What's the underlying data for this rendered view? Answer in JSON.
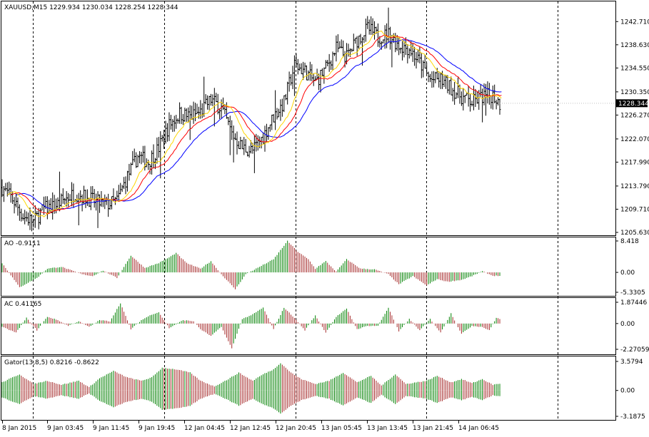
{
  "chart_title": "XAUUSD,M15  1229.934 1230.034 1228.254 1228.344",
  "current_price_label": "1228.344",
  "colors": {
    "candle": "#000000",
    "alligator_jaw": "#0000ff",
    "alligator_teeth": "#ff0000",
    "alligator_lips": "#ffd700",
    "bar_up": "#008000",
    "bar_down": "#a52a2a",
    "separator": "#000000",
    "price_marker_bg": "#000000",
    "price_marker_text": "#ffffff"
  },
  "chart_data": [
    {
      "type": "candlestick",
      "name": "XAUUSD,M15",
      "symbol": "XAUUSD",
      "timeframe": "M15",
      "ohlc_current": {
        "open": 1229.934,
        "high": 1230.034,
        "low": 1228.254,
        "close": 1228.344
      },
      "ylim": [
        1205.63,
        1244.5
      ],
      "y_tick_labels": [
        "1242.710",
        "1238.630",
        "1234.550",
        "1230.350",
        "1226.270",
        "1222.070",
        "1217.990",
        "1213.790",
        "1209.710",
        "1205.630"
      ],
      "x_tick_labels": [
        "8 Jan 2015",
        "9 Jan 03:45",
        "9 Jan 11:45",
        "9 Jan 19:45",
        "12 Jan 04:45",
        "12 Jan 12:45",
        "12 Jan 20:45",
        "13 Jan 05:45",
        "13 Jan 13:45",
        "13 Jan 21:45",
        "14 Jan 06:45"
      ],
      "overlays": [
        "Alligator jaw",
        "Alligator teeth",
        "Alligator lips"
      ],
      "price_path": [
        [
          0,
          1213.5
        ],
        [
          6,
          1211.5
        ],
        [
          12,
          1208.5
        ],
        [
          18,
          1207.5
        ],
        [
          24,
          1209.8
        ],
        [
          30,
          1210.2
        ],
        [
          36,
          1211.5
        ],
        [
          42,
          1212.5
        ],
        [
          48,
          1211.8
        ],
        [
          54,
          1211.0
        ],
        [
          60,
          1210.5
        ],
        [
          66,
          1211.2
        ],
        [
          72,
          1215.5
        ],
        [
          78,
          1219.0
        ],
        [
          84,
          1218.0
        ],
        [
          90,
          1220.5
        ],
        [
          96,
          1224.5
        ],
        [
          102,
          1226.5
        ],
        [
          108,
          1226.0
        ],
        [
          114,
          1226.8
        ],
        [
          120,
          1229.0
        ],
        [
          126,
          1227.5
        ],
        [
          132,
          1223.0
        ],
        [
          138,
          1220.5
        ],
        [
          144,
          1220.0
        ],
        [
          150,
          1222.5
        ],
        [
          156,
          1226.0
        ],
        [
          162,
          1228.5
        ],
        [
          168,
          1235.0
        ],
        [
          174,
          1234.0
        ],
        [
          180,
          1232.0
        ],
        [
          186,
          1234.5
        ],
        [
          192,
          1238.0
        ],
        [
          198,
          1236.5
        ],
        [
          204,
          1239.5
        ],
        [
          210,
          1241.5
        ],
        [
          216,
          1240.0
        ],
        [
          222,
          1240.5
        ],
        [
          228,
          1238.5
        ],
        [
          234,
          1238.0
        ],
        [
          240,
          1235.5
        ],
        [
          246,
          1232.5
        ],
        [
          252,
          1232.5
        ],
        [
          258,
          1231.0
        ],
        [
          264,
          1229.5
        ],
        [
          270,
          1228.5
        ],
        [
          276,
          1229.5
        ],
        [
          282,
          1229.8
        ],
        [
          286,
          1228.3
        ]
      ],
      "bar_count": 287
    },
    {
      "type": "histogram",
      "name": "AO",
      "label": "AO -0.9111",
      "value": -0.9111,
      "ylim": [
        -5.3305,
        8.418
      ],
      "y_tick_labels": [
        "8.418",
        "0.00",
        "-5.3305"
      ],
      "path": [
        [
          0,
          2.5
        ],
        [
          10,
          -4.0
        ],
        [
          20,
          -1.5
        ],
        [
          26,
          1.0
        ],
        [
          34,
          1.5
        ],
        [
          40,
          0.5
        ],
        [
          46,
          -0.5
        ],
        [
          52,
          -1.0
        ],
        [
          58,
          0.5
        ],
        [
          66,
          -1.5
        ],
        [
          74,
          4.5
        ],
        [
          82,
          1.2
        ],
        [
          90,
          2.5
        ],
        [
          96,
          4.0
        ],
        [
          100,
          5.2
        ],
        [
          106,
          2.5
        ],
        [
          114,
          1.0
        ],
        [
          120,
          3.0
        ],
        [
          126,
          -0.5
        ],
        [
          134,
          -4.5
        ],
        [
          140,
          -0.5
        ],
        [
          148,
          1.5
        ],
        [
          156,
          3.5
        ],
        [
          164,
          8.4
        ],
        [
          170,
          5.5
        ],
        [
          176,
          3.5
        ],
        [
          180,
          1.0
        ],
        [
          186,
          3.0
        ],
        [
          192,
          0.2
        ],
        [
          198,
          3.5
        ],
        [
          206,
          1.0
        ],
        [
          214,
          0.8
        ],
        [
          222,
          -0.5
        ],
        [
          228,
          -3.2
        ],
        [
          236,
          -1.0
        ],
        [
          244,
          -3.5
        ],
        [
          250,
          -1.8
        ],
        [
          256,
          -2.5
        ],
        [
          264,
          -2.0
        ],
        [
          270,
          -1.0
        ],
        [
          276,
          0.3
        ],
        [
          282,
          -0.9
        ],
        [
          286,
          -0.91
        ]
      ]
    },
    {
      "type": "histogram",
      "name": "AC",
      "label": "AC 0.41165",
      "value": 0.41165,
      "ylim": [
        -2.27059,
        1.87446
      ],
      "y_tick_labels": [
        "1.87446",
        "0.00",
        "-2.27059"
      ],
      "path": [
        [
          0,
          -0.3
        ],
        [
          8,
          -0.8
        ],
        [
          14,
          0.5
        ],
        [
          20,
          -0.6
        ],
        [
          26,
          0.6
        ],
        [
          32,
          0.3
        ],
        [
          38,
          -0.2
        ],
        [
          44,
          0.2
        ],
        [
          50,
          -0.3
        ],
        [
          56,
          0.3
        ],
        [
          62,
          0.2
        ],
        [
          68,
          1.8
        ],
        [
          74,
          -0.5
        ],
        [
          80,
          0.3
        ],
        [
          86,
          0.8
        ],
        [
          90,
          1.0
        ],
        [
          96,
          -0.4
        ],
        [
          104,
          0.3
        ],
        [
          110,
          0.2
        ],
        [
          114,
          -0.5
        ],
        [
          120,
          -1.1
        ],
        [
          126,
          -0.3
        ],
        [
          132,
          -2.2
        ],
        [
          138,
          0.4
        ],
        [
          144,
          0.8
        ],
        [
          150,
          1.4
        ],
        [
          156,
          -0.5
        ],
        [
          162,
          1.4
        ],
        [
          168,
          0.5
        ],
        [
          174,
          -0.6
        ],
        [
          180,
          0.7
        ],
        [
          186,
          -0.8
        ],
        [
          192,
          0.6
        ],
        [
          198,
          1.3
        ],
        [
          204,
          -0.5
        ],
        [
          210,
          -0.2
        ],
        [
          216,
          -0.2
        ],
        [
          222,
          1.4
        ],
        [
          228,
          -0.7
        ],
        [
          234,
          0.4
        ],
        [
          240,
          -0.6
        ],
        [
          246,
          0.4
        ],
        [
          252,
          -0.8
        ],
        [
          258,
          0.9
        ],
        [
          264,
          -0.9
        ],
        [
          270,
          -0.2
        ],
        [
          276,
          -0.3
        ],
        [
          280,
          -0.6
        ],
        [
          284,
          0.5
        ],
        [
          286,
          0.41
        ]
      ]
    },
    {
      "type": "histogram",
      "name": "Gator",
      "label": "Gator(13,8,5) 0.8216 -0.8622",
      "values_current": {
        "upper": 0.8216,
        "lower": -0.8622
      },
      "ylim": [
        -3.1875,
        3.5794
      ],
      "y_tick_labels": [
        "3.5794",
        "0.00",
        "-3.1875"
      ],
      "path": [
        [
          0,
          1.0
        ],
        [
          10,
          2.0
        ],
        [
          18,
          0.8
        ],
        [
          26,
          1.2
        ],
        [
          34,
          0.7
        ],
        [
          44,
          1.2
        ],
        [
          50,
          0.4
        ],
        [
          56,
          1.5
        ],
        [
          64,
          2.4
        ],
        [
          72,
          1.6
        ],
        [
          80,
          1.2
        ],
        [
          86,
          1.6
        ],
        [
          92,
          2.8
        ],
        [
          100,
          2.6
        ],
        [
          108,
          2.2
        ],
        [
          114,
          1.2
        ],
        [
          122,
          0.5
        ],
        [
          130,
          1.4
        ],
        [
          136,
          2.2
        ],
        [
          144,
          1.2
        ],
        [
          150,
          2.0
        ],
        [
          156,
          2.6
        ],
        [
          160,
          3.4
        ],
        [
          166,
          2.2
        ],
        [
          172,
          1.4
        ],
        [
          180,
          0.8
        ],
        [
          188,
          1.2
        ],
        [
          196,
          2.2
        ],
        [
          204,
          1.0
        ],
        [
          212,
          1.8
        ],
        [
          218,
          0.6
        ],
        [
          226,
          2.0
        ],
        [
          232,
          0.8
        ],
        [
          238,
          1.0
        ],
        [
          244,
          1.2
        ],
        [
          250,
          1.8
        ],
        [
          258,
          1.0
        ],
        [
          264,
          1.4
        ],
        [
          270,
          0.9
        ],
        [
          276,
          1.4
        ],
        [
          282,
          0.7
        ],
        [
          286,
          0.85
        ]
      ]
    }
  ]
}
